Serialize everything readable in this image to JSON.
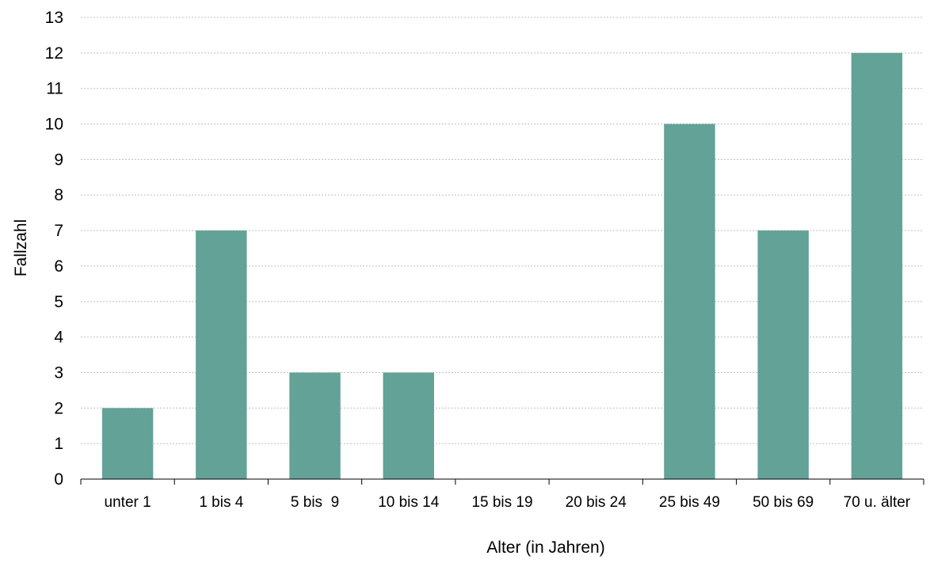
{
  "chart_data": {
    "type": "bar",
    "categories": [
      "unter 1",
      "1 bis 4",
      "5 bis  9",
      "10 bis 14",
      "15 bis 19",
      "20 bis 24",
      "25 bis 49",
      "50 bis 69",
      "70 u. älter"
    ],
    "values": [
      2,
      7,
      3,
      3,
      0,
      0,
      10,
      7,
      12
    ],
    "xlabel": "Alter (in Jahren)",
    "ylabel": "Fallzahl",
    "ylim": [
      0,
      13
    ],
    "yticks": [
      "0",
      "1",
      "2",
      "3",
      "4",
      "5",
      "6",
      "7",
      "8",
      "9",
      "10",
      "11",
      "12",
      "13"
    ],
    "grid": true,
    "bar_color": "#63a296",
    "grid_color": "#bfbfbf"
  }
}
